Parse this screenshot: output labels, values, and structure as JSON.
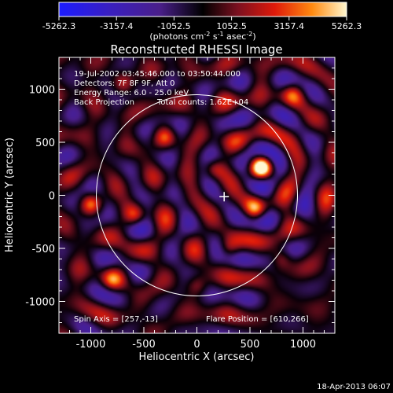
{
  "chart_data": {
    "type": "heatmap",
    "title": "Reconstructed RHESSI Image",
    "xlabel": "Heliocentric X (arcsec)",
    "ylabel": "Heliocentric Y (arcsec)",
    "xlim": [
      -1300,
      1300
    ],
    "ylim": [
      -1300,
      1300
    ],
    "xticks": [
      -1000,
      -500,
      0,
      500,
      1000
    ],
    "yticks": [
      -1000,
      -500,
      0,
      500,
      1000
    ],
    "xtick_labels": [
      "-1000",
      "-500",
      "0",
      "500",
      "1000"
    ],
    "ytick_labels": [
      "-1000",
      "-500",
      "0",
      "500",
      "1000"
    ],
    "colorbar": {
      "ticks": [
        -5262.3,
        -3157.4,
        -1052.5,
        1052.5,
        3157.4,
        5262.3
      ],
      "tick_labels": [
        "-5262.3",
        "-3157.4",
        "-1052.5",
        "1052.5",
        "3157.4",
        "5262.3"
      ],
      "unit_main": "(photons cm",
      "unit_exp1": "-2",
      "unit_mid": " s",
      "unit_exp2": "-1",
      "unit_end": " asec",
      "unit_exp3": "-2",
      "unit_close": ")",
      "range": [
        -5262.3,
        5262.3
      ]
    },
    "annotations": {
      "time": "19-Jul-2002 03:45:46.000 to 03:50:44.000",
      "detectors": "Detectors: 7F 8F 9F, Att 0",
      "energy": "Energy Range: 6.0 - 25.0 keV",
      "method": "Back Projection",
      "counts": "Total counts: 1.62E+04",
      "spin_axis": "Spin Axis = [257,-13]",
      "flare_position": "Flare Position = [610,266]",
      "timestamp": "18-Apr-2013 06:07"
    },
    "solar_limb_radius": 948,
    "marker": {
      "x": 257,
      "y": -13
    },
    "sources": [
      {
        "x": 610,
        "y": 266,
        "amp": 1.0
      },
      {
        "x": 550,
        "y": -130,
        "amp": 0.6
      },
      {
        "x": -1000,
        "y": -80,
        "amp": 0.55
      },
      {
        "x": -580,
        "y": -190,
        "amp": 0.5
      },
      {
        "x": 160,
        "y": 250,
        "amp": 0.45
      },
      {
        "x": -300,
        "y": 550,
        "amp": 0.45
      },
      {
        "x": 300,
        "y": -500,
        "amp": 0.4
      },
      {
        "x": -800,
        "y": -800,
        "amp": 0.4
      },
      {
        "x": 0,
        "y": -850,
        "amp": 0.35
      },
      {
        "x": 800,
        "y": -600,
        "amp": 0.35
      },
      {
        "x": 900,
        "y": 950,
        "amp": 0.4
      },
      {
        "x": -700,
        "y": 1050,
        "amp": 0.35
      }
    ]
  }
}
